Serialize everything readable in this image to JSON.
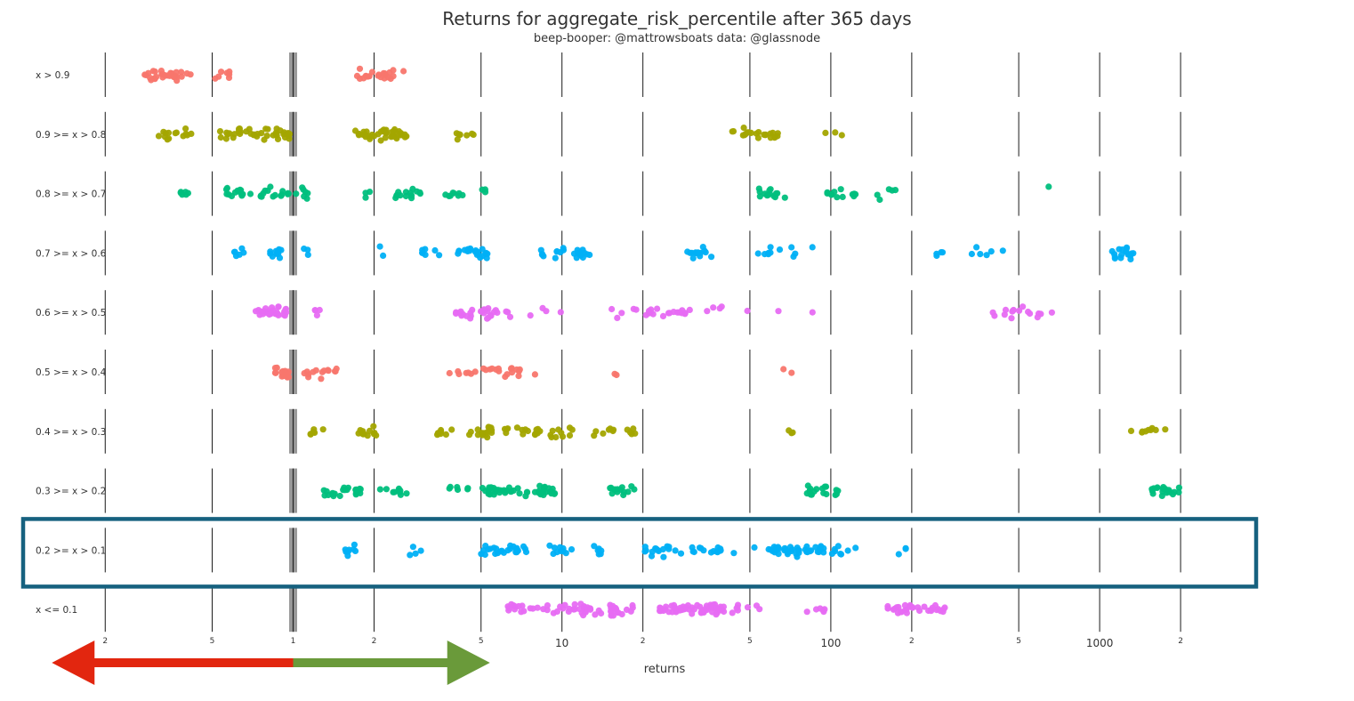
{
  "chart_data": {
    "type": "scatter",
    "title": "Returns for aggregate_risk_percentile after 365 days",
    "subtitle": "beep-booper: @mattrowsboats data: @glassnode",
    "xlabel": "returns",
    "ylabel": "",
    "x_scale": "log",
    "xlim": [
      0.2,
      3000
    ],
    "x_ticks": [
      {
        "value": 0.2,
        "label": "2"
      },
      {
        "value": 0.5,
        "label": "5"
      },
      {
        "value": 1,
        "label": "1"
      },
      {
        "value": 2,
        "label": "2"
      },
      {
        "value": 5,
        "label": "5"
      },
      {
        "value": 10,
        "label": "10"
      },
      {
        "value": 20,
        "label": "2"
      },
      {
        "value": 50,
        "label": "5"
      },
      {
        "value": 100,
        "label": "100"
      },
      {
        "value": 200,
        "label": "2"
      },
      {
        "value": 500,
        "label": "5"
      },
      {
        "value": 1000,
        "label": "1000"
      },
      {
        "value": 2000,
        "label": "2"
      }
    ],
    "reference_line": 1,
    "legend": "none",
    "grid": "vertical",
    "highlighted_category": "0.2 >= x > 0.1",
    "annotation_arrows": [
      {
        "direction": "left",
        "color": "#e2260f",
        "from": 1,
        "to": 0.2
      },
      {
        "direction": "right",
        "color": "#6a9a3a",
        "from": 1,
        "to": 5
      }
    ],
    "series": [
      {
        "category": "x > 0.9",
        "color": "#f8766d",
        "clusters": [
          [
            0.27,
            0.42,
            30
          ],
          [
            0.5,
            0.62,
            7
          ],
          [
            1.7,
            2.6,
            22
          ]
        ]
      },
      {
        "category": "0.9 >= x > 0.8",
        "color": "#a3a500",
        "clusters": [
          [
            0.31,
            0.43,
            14
          ],
          [
            0.53,
            0.98,
            40
          ],
          [
            1.7,
            2.65,
            40
          ],
          [
            4.0,
            4.7,
            8
          ],
          [
            43,
            65,
            22
          ],
          [
            95,
            112,
            3
          ]
        ]
      },
      {
        "category": "0.8 >= x > 0.7",
        "color": "#00bf7d",
        "clusters": [
          [
            0.38,
            0.42,
            6
          ],
          [
            0.56,
            1.15,
            36
          ],
          [
            1.75,
            1.95,
            3
          ],
          [
            2.4,
            3.0,
            14
          ],
          [
            3.5,
            4.5,
            8
          ],
          [
            5.0,
            5.2,
            3
          ],
          [
            53,
            68,
            14
          ],
          [
            92,
            125,
            12
          ],
          [
            145,
            175,
            5
          ],
          [
            630,
            660,
            1
          ]
        ]
      },
      {
        "category": "0.7 >= x > 0.6",
        "color": "#00b0f6",
        "clusters": [
          [
            0.6,
            0.66,
            6
          ],
          [
            0.8,
            0.93,
            10
          ],
          [
            1.05,
            1.15,
            3
          ],
          [
            1.8,
            2.2,
            2
          ],
          [
            3.0,
            3.6,
            7
          ],
          [
            4.0,
            5.3,
            22
          ],
          [
            8,
            13,
            22
          ],
          [
            28,
            36,
            14
          ],
          [
            50,
            75,
            10
          ],
          [
            85,
            88,
            1
          ],
          [
            240,
            300,
            4
          ],
          [
            330,
            450,
            6
          ],
          [
            1100,
            1350,
            18
          ]
        ]
      },
      {
        "category": "0.6 >= x > 0.5",
        "color": "#e76bf3",
        "clusters": [
          [
            0.72,
            0.95,
            28
          ],
          [
            1.2,
            1.3,
            4
          ],
          [
            4.0,
            6.5,
            28
          ],
          [
            7.2,
            10.5,
            4
          ],
          [
            14,
            19,
            5
          ],
          [
            20,
            30,
            18
          ],
          [
            33,
            40,
            4
          ],
          [
            48,
            52,
            1
          ],
          [
            60,
            65,
            1
          ],
          [
            85,
            88,
            1
          ],
          [
            380,
            680,
            16
          ]
        ]
      },
      {
        "category": "0.5 >= x > 0.4",
        "color": "#f8766d",
        "clusters": [
          [
            0.85,
            1.0,
            14
          ],
          [
            1.1,
            1.5,
            14
          ],
          [
            3.5,
            3.9,
            1
          ],
          [
            4.0,
            4.8,
            6
          ],
          [
            5.0,
            7.0,
            16
          ],
          [
            7.5,
            8.0,
            1
          ],
          [
            15,
            16,
            2
          ],
          [
            65,
            72,
            2
          ]
        ]
      },
      {
        "category": "0.4 >= x > 0.3",
        "color": "#a3a500",
        "clusters": [
          [
            1.15,
            1.3,
            6
          ],
          [
            1.75,
            2.1,
            12
          ],
          [
            3.4,
            4.0,
            8
          ],
          [
            4.5,
            5.5,
            18
          ],
          [
            6.0,
            8.5,
            16
          ],
          [
            9.0,
            11.0,
            10
          ],
          [
            13,
            19,
            12
          ],
          [
            60,
            75,
            3
          ],
          [
            1300,
            1800,
            9
          ]
        ]
      },
      {
        "category": "0.3 >= x > 0.2",
        "color": "#00bf7d",
        "clusters": [
          [
            1.3,
            1.8,
            24
          ],
          [
            2.1,
            2.8,
            10
          ],
          [
            3.8,
            4.5,
            6
          ],
          [
            5.0,
            7.5,
            30
          ],
          [
            7.8,
            9.5,
            18
          ],
          [
            15,
            19,
            14
          ],
          [
            80,
            110,
            18
          ],
          [
            1550,
            2000,
            20
          ]
        ]
      },
      {
        "category": "0.2 >= x > 0.1",
        "color": "#00b0f6",
        "clusters": [
          [
            1.55,
            1.75,
            8
          ],
          [
            2.7,
            3.0,
            4
          ],
          [
            5.0,
            7.5,
            26
          ],
          [
            9.0,
            11,
            10
          ],
          [
            12,
            14,
            6
          ],
          [
            20,
            28,
            16
          ],
          [
            30,
            40,
            14
          ],
          [
            43,
            52,
            2
          ],
          [
            58,
            95,
            40
          ],
          [
            100,
            125,
            8
          ],
          [
            170,
            195,
            3
          ]
        ]
      },
      {
        "category": "x <= 0.1",
        "color": "#e76bf3",
        "clusters": [
          [
            6.0,
            13,
            28
          ],
          [
            11,
            19,
            34
          ],
          [
            23,
            40,
            60
          ],
          [
            43,
            55,
            8
          ],
          [
            80,
            100,
            6
          ],
          [
            160,
            270,
            32
          ]
        ]
      }
    ]
  }
}
